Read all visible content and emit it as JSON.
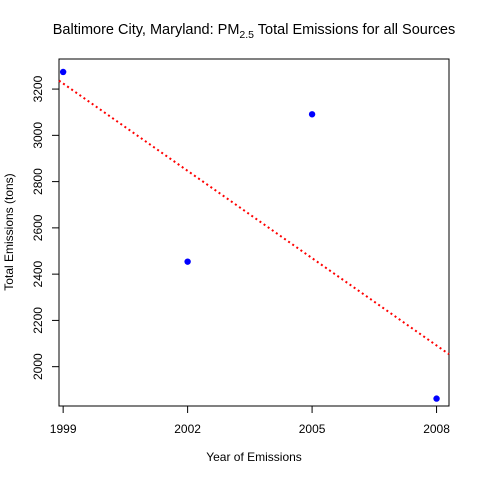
{
  "chart_data": {
    "type": "scatter",
    "title": {
      "prefix": "Baltimore City, Maryland: PM",
      "subscript": "2.5",
      "suffix": " Total Emissions for all Sources"
    },
    "xlabel": "Year of Emissions",
    "ylabel": "Total Emissions (tons)",
    "x_ticks": [
      1999,
      2002,
      2005,
      2008
    ],
    "y_ticks": [
      2000,
      2200,
      2400,
      2600,
      2800,
      3000,
      3200
    ],
    "xlim": [
      1998.9,
      2008.3
    ],
    "ylim": [
      1830,
      3330
    ],
    "points": [
      {
        "x": 1999,
        "y": 3274
      },
      {
        "x": 2002,
        "y": 2454
      },
      {
        "x": 2005,
        "y": 3091
      },
      {
        "x": 2008,
        "y": 1862
      }
    ],
    "trend_line": {
      "style": "dotted",
      "slope": -125.8,
      "intercept_at_1999": 3224
    },
    "point_color": "#0000FF",
    "trend_color": "#FF0000",
    "grid": false,
    "legend": "none"
  }
}
